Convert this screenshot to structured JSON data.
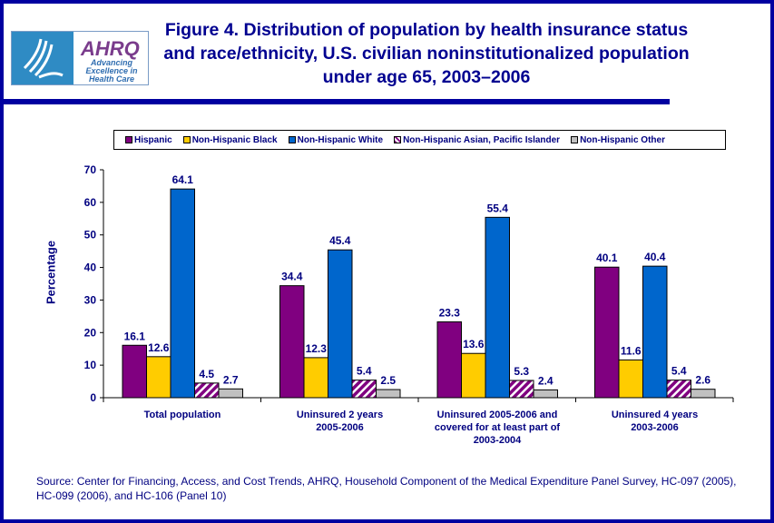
{
  "logo": {
    "text": "AHRQ",
    "tagline": "Advancing Excellence in Health Care"
  },
  "colors": {
    "frame": "#0000a0",
    "text": "#000080"
  },
  "chart_data": {
    "type": "bar",
    "title": "Figure 4. Distribution of population by health insurance status and race/ethnicity, U.S. civilian noninstitutionalized population under age 65, 2003–2006",
    "xlabel": "",
    "ylabel": "Percentage",
    "ylim": [
      0,
      70
    ],
    "yticks": [
      0,
      10,
      20,
      30,
      40,
      50,
      60,
      70
    ],
    "grid": false,
    "legend_placement": "top",
    "categories": [
      "Total population",
      "Uninsured 2 years 2005-2006",
      "Uninsured 2005-2006 and covered for at least part of 2003-2004",
      "Uninsured 4 years 2003-2006"
    ],
    "series": [
      {
        "name": "Hispanic",
        "color": "#800080",
        "pattern": "solid",
        "values": [
          16.1,
          34.4,
          23.3,
          40.1
        ]
      },
      {
        "name": "Non-Hispanic Black",
        "color": "#ffcc00",
        "pattern": "solid",
        "values": [
          12.6,
          12.3,
          13.6,
          11.6
        ]
      },
      {
        "name": "Non-Hispanic White",
        "color": "#0066cc",
        "pattern": "solid",
        "values": [
          64.1,
          45.4,
          55.4,
          40.4
        ]
      },
      {
        "name": "Non-Hispanic Asian, Pacific Islander",
        "color": "#800080",
        "pattern": "diagonal-stripes",
        "values": [
          4.5,
          5.4,
          5.3,
          5.4
        ]
      },
      {
        "name": "Non-Hispanic Other",
        "color": "#c0c0c0",
        "pattern": "solid",
        "values": [
          2.7,
          2.5,
          2.4,
          2.6
        ]
      }
    ]
  },
  "category_lines": [
    [
      "Total population"
    ],
    [
      "Uninsured 2 years",
      "2005-2006"
    ],
    [
      "Uninsured 2005-2006 and",
      "covered for at least part of",
      "2003-2004"
    ],
    [
      "Uninsured 4 years",
      "2003-2006"
    ]
  ],
  "source": "Source: Center for Financing, Access, and Cost Trends, AHRQ, Household Component of the Medical Expenditure Panel Survey, HC-097 (2005), HC-099 (2006), and HC-106 (Panel 10)"
}
